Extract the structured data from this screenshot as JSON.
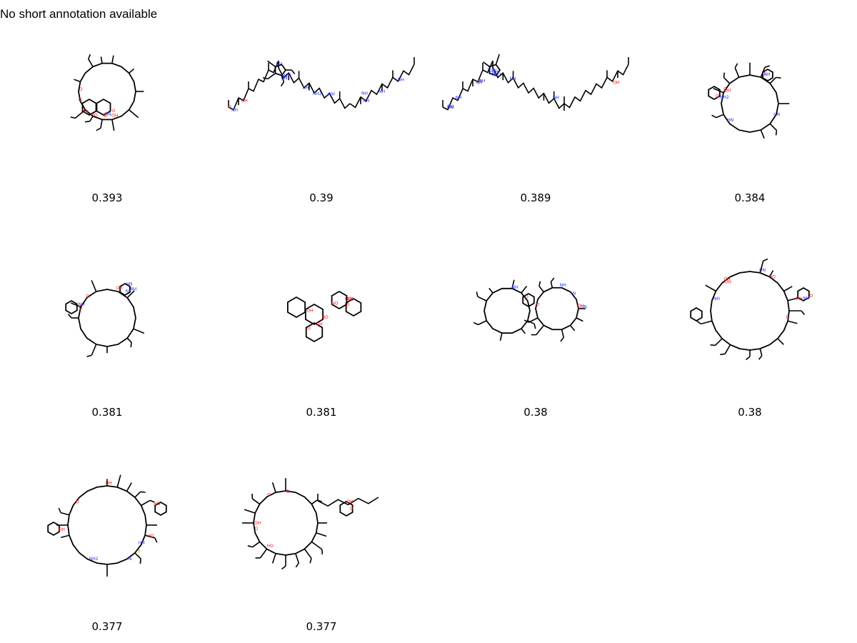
{
  "annotation": "No short annotation available",
  "molecules": [
    {
      "score": "0.393",
      "shape": "macrocycle-fused",
      "atoms": [
        "OH",
        "OH",
        "O",
        "O",
        "O",
        "HN",
        "O",
        "HO",
        "O"
      ]
    },
    {
      "score": "0.39",
      "shape": "peptide-chain",
      "atoms": [
        "NH",
        "HN",
        "NH",
        "NH",
        "NH",
        "NH",
        "NH",
        "NH",
        "NH",
        "OH",
        "H2N",
        "NH2",
        "O"
      ]
    },
    {
      "score": "0.389",
      "shape": "peptide-chain",
      "atoms": [
        "NH",
        "HN",
        "NH",
        "NH",
        "NH",
        "NH",
        "NH",
        "NH",
        "OH",
        "H2N",
        "NH2",
        "O"
      ]
    },
    {
      "score": "0.384",
      "shape": "macrocycle-medium",
      "atoms": [
        "OH",
        "HN",
        "NH",
        "HN",
        "NH2",
        "O",
        "O",
        "O"
      ]
    },
    {
      "score": "0.381",
      "shape": "macrocycle-medium",
      "atoms": [
        "NH",
        "HN",
        "OH",
        "NH",
        "O",
        "O",
        "N"
      ]
    },
    {
      "score": "0.381",
      "shape": "glycoside",
      "atoms": [
        "HO",
        "HO",
        "OH",
        "HO",
        "OH",
        "HO",
        "O",
        "O"
      ]
    },
    {
      "score": "0.38",
      "shape": "bicyclic-peptide",
      "atoms": [
        "NH",
        "HN",
        "OH",
        "NH",
        "N",
        "O",
        "O"
      ]
    },
    {
      "score": "0.38",
      "shape": "macrocycle-large",
      "atoms": [
        "HO",
        "OH",
        "HN",
        "NH",
        "NH",
        "OH",
        "OH",
        "O",
        "O"
      ]
    },
    {
      "score": "0.377",
      "shape": "macrocycle-large-2",
      "atoms": [
        "HO",
        "OH",
        "NH2",
        "HO",
        "OH",
        "HN",
        "N",
        "S",
        "O"
      ]
    },
    {
      "score": "0.377",
      "shape": "macrolide",
      "atoms": [
        "OH",
        "OH",
        "O",
        "O",
        "O",
        "O",
        "HO"
      ]
    }
  ]
}
